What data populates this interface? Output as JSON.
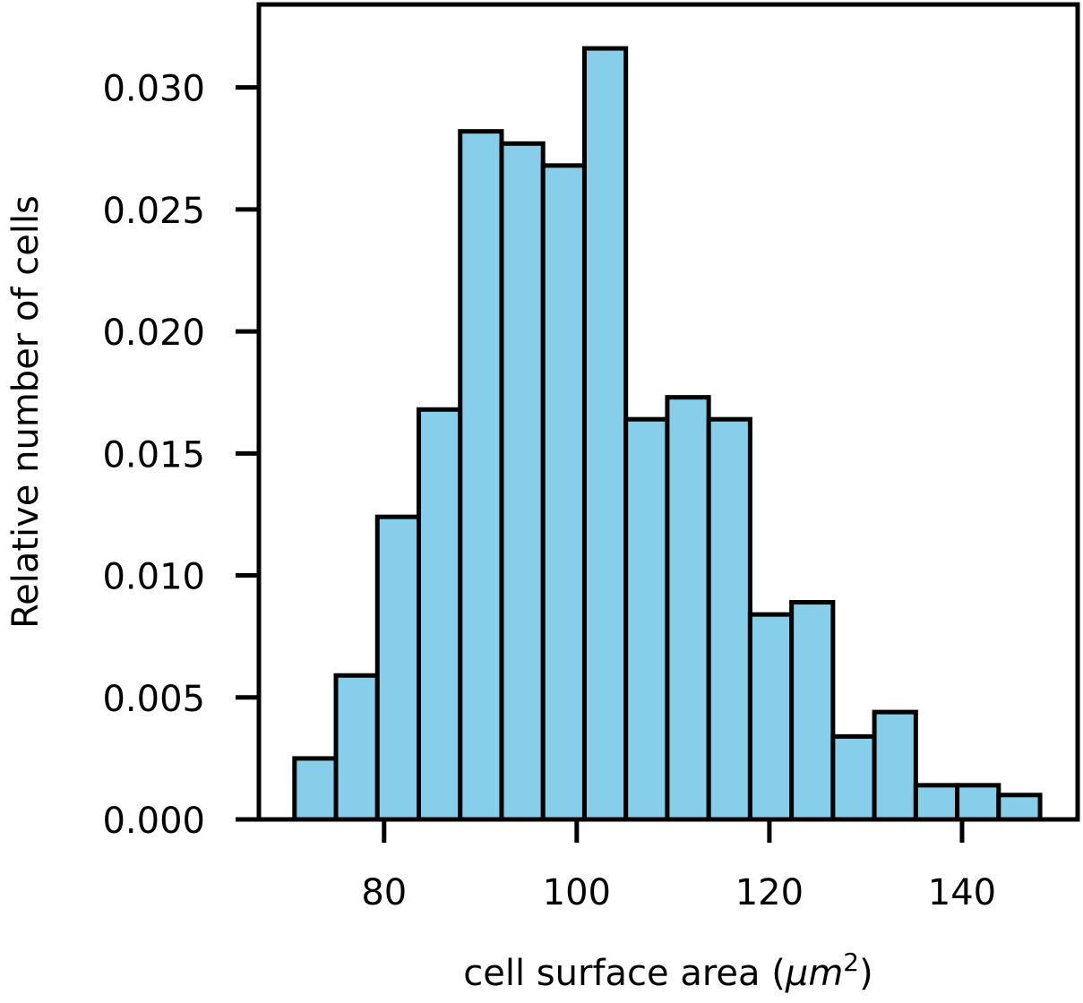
{
  "chart_data": {
    "type": "bar",
    "title": "",
    "xlabel_prefix": "cell surface area (",
    "xlabel_unit": "μm",
    "xlabel_exp": "2",
    "xlabel_suffix": ")",
    "ylabel": "Relative number of cells",
    "xlim": [
      67,
      152
    ],
    "ylim": [
      0,
      0.0334
    ],
    "xticks": [
      80,
      100,
      120,
      140
    ],
    "yticks": [
      0.0,
      0.005,
      0.01,
      0.015,
      0.02,
      0.025,
      0.03
    ],
    "xtick_labels": [
      "80",
      "100",
      "120",
      "140"
    ],
    "ytick_labels": [
      "0.000",
      "0.005",
      "0.010",
      "0.015",
      "0.020",
      "0.025",
      "0.030"
    ],
    "grid": false,
    "bar_color": "#87ceeb",
    "edge_color": "#000000",
    "bin_edges": [
      70.7,
      75.0,
      79.3,
      83.6,
      87.9,
      92.2,
      96.5,
      100.8,
      105.1,
      109.4,
      113.7,
      118.0,
      122.3,
      126.6,
      130.9,
      135.2,
      139.5,
      143.8,
      148.1
    ],
    "values": [
      0.0025,
      0.0059,
      0.0124,
      0.0168,
      0.0282,
      0.0277,
      0.0268,
      0.0316,
      0.0164,
      0.0173,
      0.0164,
      0.0084,
      0.0089,
      0.0034,
      0.0044,
      0.0014,
      0.0014,
      0.001
    ]
  }
}
